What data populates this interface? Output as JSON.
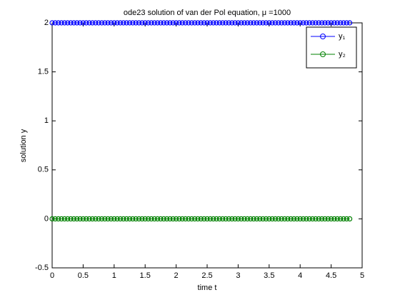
{
  "chart_data": {
    "type": "line",
    "title": "ode23 solution of van der Pol equation, μ =1000",
    "xlabel": "time t",
    "ylabel": "solution y",
    "x": [
      0,
      0.05,
      0.1,
      0.15,
      0.2,
      0.25,
      0.3,
      0.35,
      0.4,
      0.45,
      0.5,
      0.55,
      0.6,
      0.65,
      0.7,
      0.75,
      0.8,
      0.85,
      0.9,
      0.95,
      1,
      1.05,
      1.1,
      1.15,
      1.2,
      1.25,
      1.3,
      1.35,
      1.4,
      1.45,
      1.5,
      1.55,
      1.6,
      1.65,
      1.7,
      1.75,
      1.8,
      1.85,
      1.9,
      1.95,
      2,
      2.05,
      2.1,
      2.15,
      2.2,
      2.25,
      2.3,
      2.35,
      2.4,
      2.45,
      2.5,
      2.55,
      2.6,
      2.65,
      2.7,
      2.75,
      2.8,
      2.85,
      2.9,
      2.95,
      3,
      3.05,
      3.1,
      3.15,
      3.2,
      3.25,
      3.3,
      3.35,
      3.4,
      3.45,
      3.5,
      3.55,
      3.6,
      3.65,
      3.7,
      3.75,
      3.8,
      3.85,
      3.9,
      3.95,
      4,
      4.05,
      4.1,
      4.15,
      4.2,
      4.25,
      4.3,
      4.35,
      4.4,
      4.45,
      4.5,
      4.55,
      4.6,
      4.65,
      4.7,
      4.75,
      4.8
    ],
    "series": [
      {
        "name": "y₁",
        "color": "#0000ff",
        "values": [
          2,
          2,
          2,
          2,
          2,
          2,
          2,
          2,
          2,
          2,
          2,
          2,
          2,
          2,
          2,
          2,
          2,
          2,
          2,
          2,
          2,
          2,
          2,
          2,
          2,
          2,
          2,
          2,
          2,
          2,
          2,
          2,
          2,
          2,
          2,
          2,
          2,
          2,
          2,
          2,
          2,
          2,
          2,
          2,
          2,
          2,
          2,
          2,
          2,
          2,
          2,
          2,
          2,
          2,
          2,
          2,
          2,
          2,
          2,
          2,
          2,
          2,
          2,
          2,
          2,
          2,
          2,
          2,
          2,
          2,
          2,
          2,
          2,
          2,
          2,
          2,
          2,
          2,
          2,
          2,
          2,
          2,
          2,
          2,
          2,
          2,
          2,
          2,
          2,
          2,
          2,
          2,
          2,
          2,
          2,
          2,
          2
        ]
      },
      {
        "name": "y₂",
        "color": "#008000",
        "values": [
          0,
          0,
          0,
          0,
          0,
          0,
          0,
          0,
          0,
          0,
          0,
          0,
          0,
          0,
          0,
          0,
          0,
          0,
          0,
          0,
          0,
          0,
          0,
          0,
          0,
          0,
          0,
          0,
          0,
          0,
          0,
          0,
          0,
          0,
          0,
          0,
          0,
          0,
          0,
          0,
          0,
          0,
          0,
          0,
          0,
          0,
          0,
          0,
          0,
          0,
          0,
          0,
          0,
          0,
          0,
          0,
          0,
          0,
          0,
          0,
          0,
          0,
          0,
          0,
          0,
          0,
          0,
          0,
          0,
          0,
          0,
          0,
          0,
          0,
          0,
          0,
          0,
          0,
          0,
          0,
          0,
          0,
          0,
          0,
          0,
          0,
          0,
          0,
          0,
          0,
          0,
          0,
          0,
          0,
          0,
          0,
          0
        ]
      }
    ],
    "xlim": [
      0,
      5
    ],
    "xticks": [
      0,
      0.5,
      1,
      1.5,
      2,
      2.5,
      3,
      3.5,
      4,
      4.5,
      5
    ],
    "ylim": [
      -0.5,
      2
    ],
    "yticks": [
      -0.5,
      0,
      0.5,
      1,
      1.5,
      2
    ],
    "grid": false,
    "legend": "northeast"
  }
}
